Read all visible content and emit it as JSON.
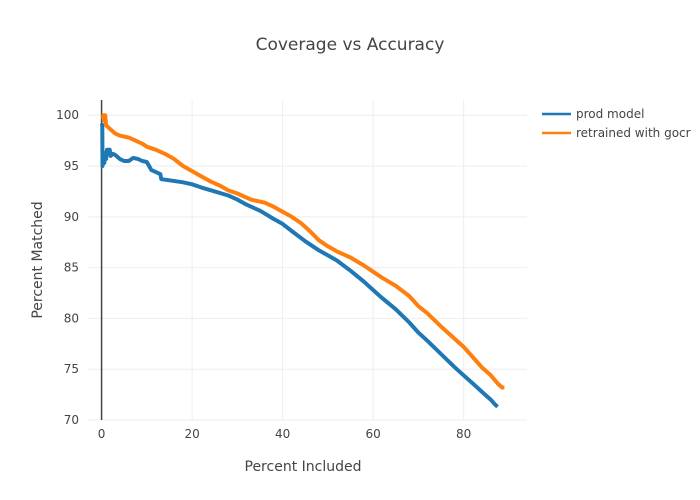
{
  "chart_data": {
    "type": "line",
    "title": "Coverage vs Accuracy",
    "xlabel": "Percent Included",
    "ylabel": "Percent Matched",
    "xlim": [
      -3,
      94
    ],
    "ylim": [
      70,
      101.5
    ],
    "xticks": [
      0,
      20,
      40,
      60,
      80
    ],
    "yticks": [
      70,
      75,
      80,
      85,
      90,
      95,
      100
    ],
    "grid": true,
    "legend": "top-right",
    "series": [
      {
        "name": "prod model",
        "color": "#1f77b4",
        "points": [
          [
            0.0,
            99.2
          ],
          [
            0.15,
            99.0
          ],
          [
            0.2,
            95.0
          ],
          [
            0.3,
            95.4
          ],
          [
            0.4,
            96.2
          ],
          [
            0.6,
            95.3
          ],
          [
            0.8,
            96.3
          ],
          [
            1.0,
            95.7
          ],
          [
            1.2,
            96.6
          ],
          [
            1.8,
            96.6
          ],
          [
            2.0,
            96.0
          ],
          [
            2.5,
            96.2
          ],
          [
            3.0,
            96.1
          ],
          [
            4.0,
            95.7
          ],
          [
            5.0,
            95.5
          ],
          [
            6.0,
            95.5
          ],
          [
            7.0,
            95.8
          ],
          [
            8.0,
            95.7
          ],
          [
            9.0,
            95.5
          ],
          [
            10.0,
            95.4
          ],
          [
            11.0,
            94.6
          ],
          [
            12.0,
            94.4
          ],
          [
            13.0,
            94.2
          ],
          [
            13.2,
            93.7
          ],
          [
            15.0,
            93.6
          ],
          [
            18.0,
            93.4
          ],
          [
            20.0,
            93.2
          ],
          [
            22.0,
            92.9
          ],
          [
            25.0,
            92.5
          ],
          [
            28.0,
            92.1
          ],
          [
            30.0,
            91.7
          ],
          [
            32.0,
            91.2
          ],
          [
            35.0,
            90.6
          ],
          [
            38.0,
            89.8
          ],
          [
            40.0,
            89.3
          ],
          [
            42.0,
            88.6
          ],
          [
            45.0,
            87.6
          ],
          [
            48.0,
            86.7
          ],
          [
            50.0,
            86.2
          ],
          [
            52.0,
            85.7
          ],
          [
            55.0,
            84.7
          ],
          [
            58.0,
            83.6
          ],
          [
            60.0,
            82.8
          ],
          [
            62.0,
            82.0
          ],
          [
            65.0,
            80.9
          ],
          [
            68.0,
            79.6
          ],
          [
            70.0,
            78.6
          ],
          [
            72.0,
            77.8
          ],
          [
            75.0,
            76.5
          ],
          [
            78.0,
            75.2
          ],
          [
            80.0,
            74.4
          ],
          [
            82.0,
            73.6
          ],
          [
            84.0,
            72.8
          ],
          [
            86.0,
            72.0
          ],
          [
            87.0,
            71.5
          ],
          [
            87.5,
            71.3
          ]
        ]
      },
      {
        "name": "retrained with gocr",
        "color": "#ff7f0e",
        "points": [
          [
            0.0,
            100.0
          ],
          [
            0.3,
            100.0
          ],
          [
            0.5,
            99.5
          ],
          [
            0.8,
            100.0
          ],
          [
            1.0,
            99.0
          ],
          [
            1.5,
            98.8
          ],
          [
            2.0,
            98.6
          ],
          [
            3.0,
            98.2
          ],
          [
            4.0,
            98.0
          ],
          [
            5.0,
            97.9
          ],
          [
            6.0,
            97.8
          ],
          [
            7.0,
            97.6
          ],
          [
            8.0,
            97.4
          ],
          [
            9.0,
            97.2
          ],
          [
            10.0,
            96.9
          ],
          [
            12.0,
            96.6
          ],
          [
            14.0,
            96.2
          ],
          [
            16.0,
            95.7
          ],
          [
            18.0,
            95.0
          ],
          [
            20.0,
            94.5
          ],
          [
            22.0,
            94.0
          ],
          [
            24.0,
            93.5
          ],
          [
            26.0,
            93.1
          ],
          [
            28.0,
            92.6
          ],
          [
            30.0,
            92.3
          ],
          [
            33.0,
            91.7
          ],
          [
            36.0,
            91.4
          ],
          [
            38.0,
            91.0
          ],
          [
            40.0,
            90.5
          ],
          [
            42.0,
            90.0
          ],
          [
            44.0,
            89.4
          ],
          [
            46.0,
            88.6
          ],
          [
            48.0,
            87.7
          ],
          [
            50.0,
            87.1
          ],
          [
            52.0,
            86.6
          ],
          [
            55.0,
            86.0
          ],
          [
            58.0,
            85.2
          ],
          [
            60.0,
            84.6
          ],
          [
            62.0,
            84.0
          ],
          [
            65.0,
            83.2
          ],
          [
            68.0,
            82.2
          ],
          [
            70.0,
            81.2
          ],
          [
            72.0,
            80.5
          ],
          [
            75.0,
            79.2
          ],
          [
            78.0,
            78.0
          ],
          [
            80.0,
            77.2
          ],
          [
            82.0,
            76.2
          ],
          [
            84.0,
            75.2
          ],
          [
            86.0,
            74.4
          ],
          [
            87.5,
            73.6
          ],
          [
            88.5,
            73.2
          ],
          [
            89.0,
            73.2
          ]
        ]
      }
    ]
  }
}
